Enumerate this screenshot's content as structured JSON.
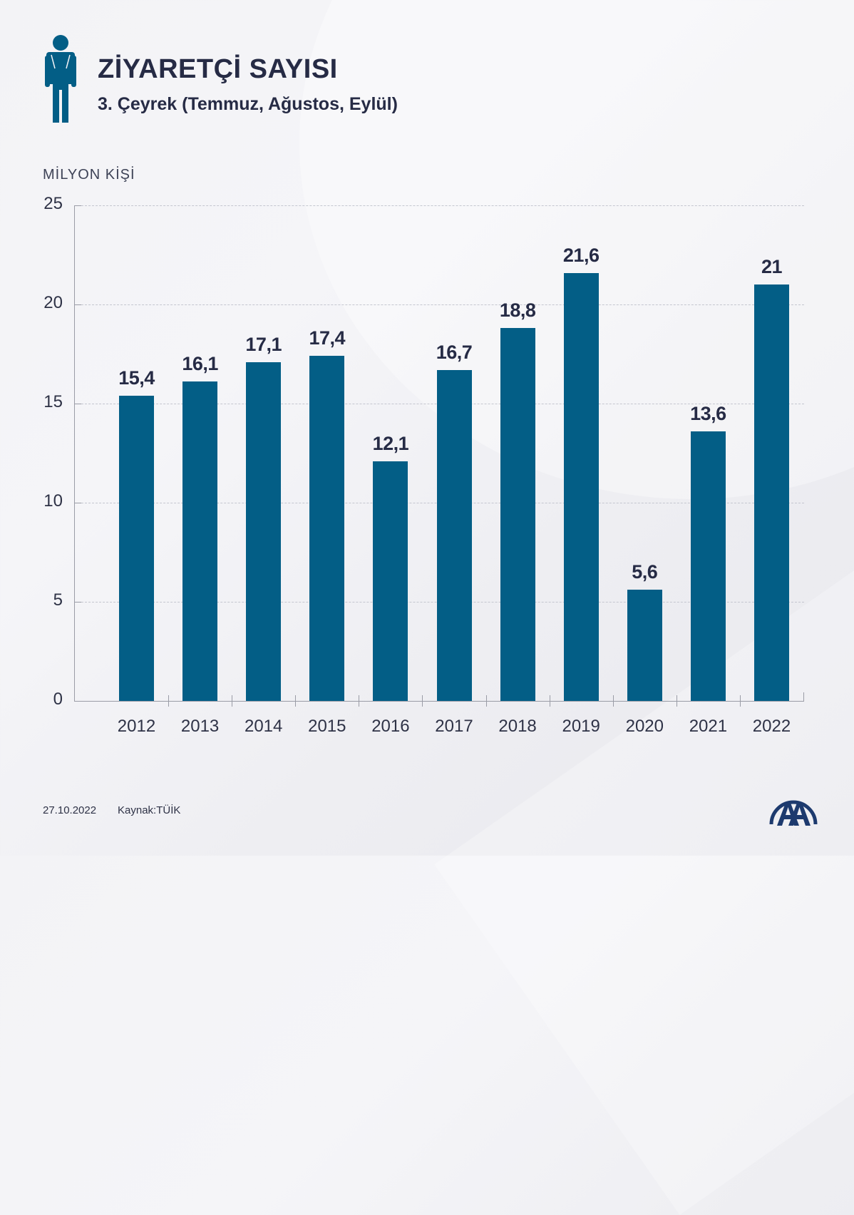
{
  "header": {
    "title": "ZİYARETÇİ SAYISI",
    "subtitle": "3. Çeyrek (Temmuz, Ağustos, Eylül)",
    "icon": "person-backpack-icon"
  },
  "colors": {
    "bar": "#035e86",
    "text": "#262b45",
    "icon": "#035e86"
  },
  "chart_data": {
    "type": "bar",
    "title": "ZİYARETÇİ SAYISI",
    "subtitle": "3. Çeyrek (Temmuz, Ağustos, Eylül)",
    "xlabel": "",
    "ylabel": "MİLYON KİŞİ",
    "categories": [
      "2012",
      "2013",
      "2014",
      "2015",
      "2016",
      "2017",
      "2018",
      "2019",
      "2020",
      "2021",
      "2022"
    ],
    "values": [
      15.4,
      16.1,
      17.1,
      17.4,
      12.1,
      16.7,
      18.8,
      21.6,
      5.6,
      13.6,
      21
    ],
    "value_labels": [
      "15,4",
      "16,1",
      "17,1",
      "17,4",
      "12,1",
      "16,7",
      "18,8",
      "21,6",
      "5,6",
      "13,6",
      "21"
    ],
    "yticks": [
      "0",
      "5",
      "10",
      "15",
      "20",
      "25"
    ],
    "ylim": [
      0,
      25
    ],
    "grid": true,
    "legend": null
  },
  "axis": {
    "unit_label": "MİLYON KİŞİ"
  },
  "footer": {
    "date": "27.10.2022",
    "source": "Kaynak:TÜİK",
    "logo": "AA"
  }
}
